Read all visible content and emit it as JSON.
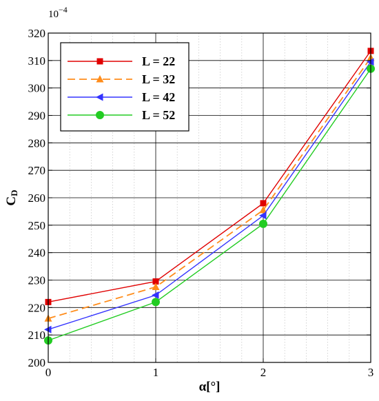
{
  "chart_data": {
    "type": "line",
    "title": "",
    "xlabel": "α[°]",
    "ylabel": "C",
    "ylabel_subscript": "D",
    "y_multiplier": "10",
    "y_multiplier_exp": "−4",
    "x": [
      0,
      1,
      2,
      3
    ],
    "xlim": [
      0,
      3
    ],
    "ylim": [
      200,
      320
    ],
    "x_ticks": [
      0,
      1,
      2,
      3
    ],
    "y_ticks": [
      200,
      210,
      220,
      230,
      240,
      250,
      260,
      270,
      280,
      290,
      300,
      310,
      320
    ],
    "grid": "major solid, minor dotted",
    "legend_position": "top-left",
    "series": [
      {
        "name": "L = 22",
        "values": [
          222,
          229.5,
          258,
          313.5
        ],
        "color": "#e00000",
        "marker": "square",
        "dash": "solid"
      },
      {
        "name": "L = 32",
        "values": [
          216,
          227.5,
          255.5,
          311
        ],
        "color": "#ff8c1a",
        "marker": "triangle-up",
        "dash": "dashed"
      },
      {
        "name": "L = 42",
        "values": [
          212,
          224.5,
          253.5,
          309.5
        ],
        "color": "#3333ff",
        "marker": "triangle-left",
        "dash": "solid"
      },
      {
        "name": "L = 52",
        "values": [
          208,
          222,
          250.5,
          307
        ],
        "color": "#22cc22",
        "marker": "circle",
        "dash": "solid"
      }
    ]
  }
}
